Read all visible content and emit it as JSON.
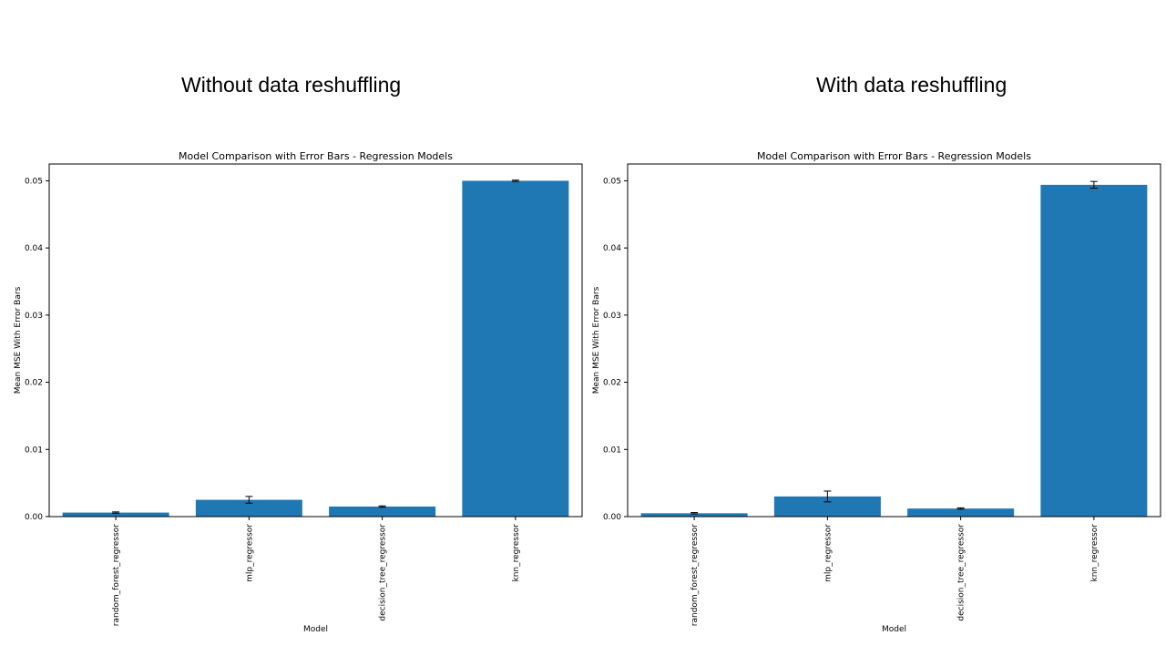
{
  "headings": {
    "left": "Without data reshuffling",
    "right": "With data reshuffling"
  },
  "colors": {
    "bar": "#1f77b4",
    "axis": "#000000",
    "error": "#000000"
  },
  "chart_data": [
    {
      "type": "bar",
      "title": "Model Comparison with Error Bars - Regression Models",
      "xlabel": "Model",
      "ylabel": "Mean MSE With Error Bars",
      "ylim": [
        0,
        0.0525
      ],
      "yticks": [
        0.0,
        0.01,
        0.02,
        0.03,
        0.04,
        0.05
      ],
      "ytick_labels": [
        "0.00",
        "0.01",
        "0.02",
        "0.03",
        "0.04",
        "0.05"
      ],
      "categories": [
        "random_forest_regressor",
        "mlp_regressor",
        "decision_tree_regressor",
        "knn_regressor"
      ],
      "values": [
        0.0006,
        0.0025,
        0.0015,
        0.05
      ],
      "errors": [
        0.0001,
        0.0005,
        0.0001,
        0.0001
      ],
      "grid": false
    },
    {
      "type": "bar",
      "title": "Model Comparison with Error Bars - Regression Models",
      "xlabel": "Model",
      "ylabel": "Mean MSE With Error Bars",
      "ylim": [
        0,
        0.0525
      ],
      "yticks": [
        0.0,
        0.01,
        0.02,
        0.03,
        0.04,
        0.05
      ],
      "ytick_labels": [
        "0.00",
        "0.01",
        "0.02",
        "0.03",
        "0.04",
        "0.05"
      ],
      "categories": [
        "random_forest_regressor",
        "mlp_regressor",
        "decision_tree_regressor",
        "knn_regressor"
      ],
      "values": [
        0.0005,
        0.003,
        0.0012,
        0.0494
      ],
      "errors": [
        0.0001,
        0.0008,
        0.0001,
        0.0005
      ],
      "grid": false
    }
  ]
}
